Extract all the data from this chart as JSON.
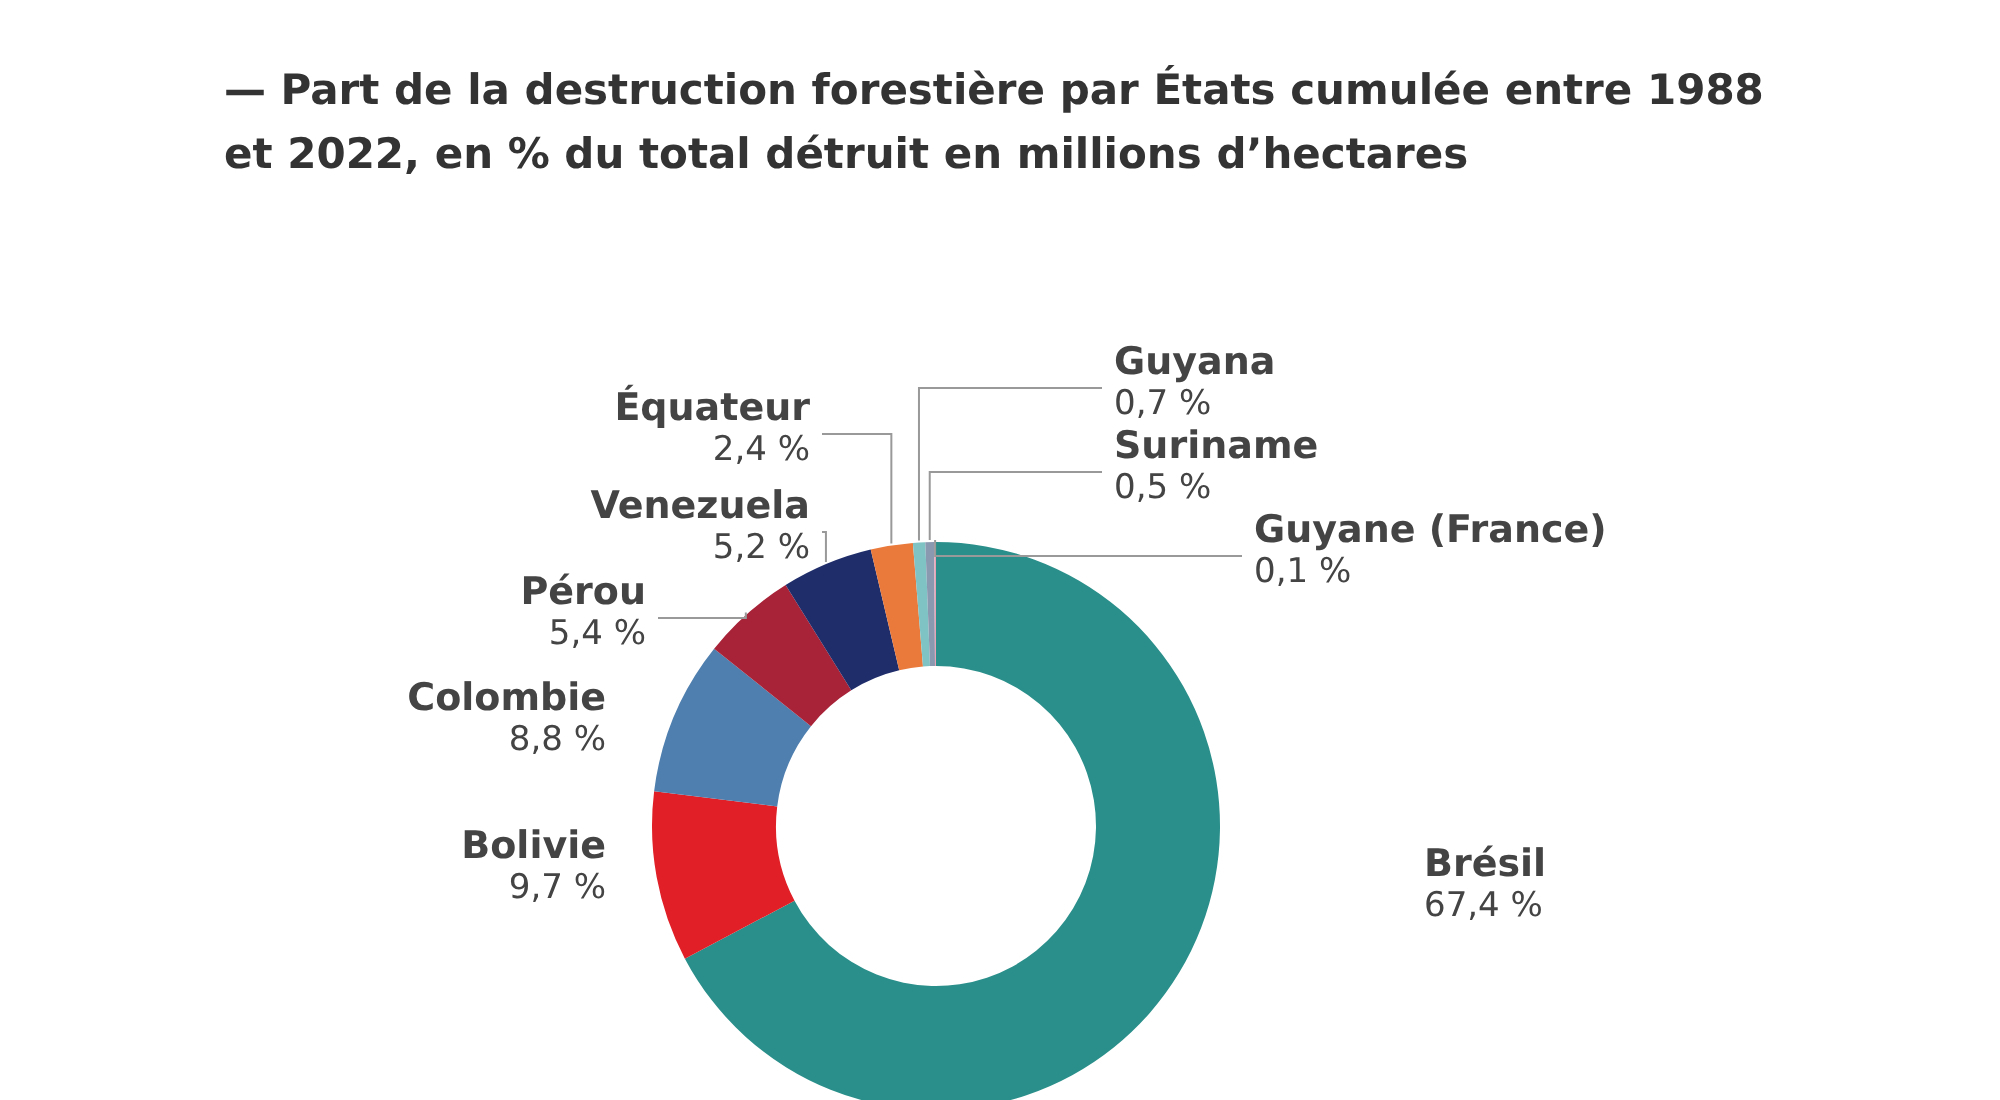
{
  "chart_data": {
    "type": "donut",
    "title": "— Part de la destruction forestière par États cumulée entre 1988 et 2022, en % du total détruit en millions d’hectares",
    "categories": [
      "Brésil",
      "Bolivie",
      "Colombie",
      "Pérou",
      "Venezuela",
      "Équateur",
      "Guyana",
      "Suriname",
      "Guyane (France)"
    ],
    "values": [
      67.4,
      9.7,
      8.8,
      5.4,
      5.2,
      2.4,
      0.7,
      0.5,
      0.1
    ],
    "value_labels": [
      "67,4 %",
      "9,7 %",
      "8,8 %",
      "5,4 %",
      "5,2 %",
      "2,4 %",
      "0,7 %",
      "0,5 %",
      "0,1 %"
    ],
    "colors": [
      "#2a8f8a",
      "#e01f26",
      "#4f7fae",
      "#a82238",
      "#1f2d6b",
      "#ea7a3c",
      "#7fc3c4",
      "#8a98b0",
      "#e7a3b5"
    ]
  }
}
